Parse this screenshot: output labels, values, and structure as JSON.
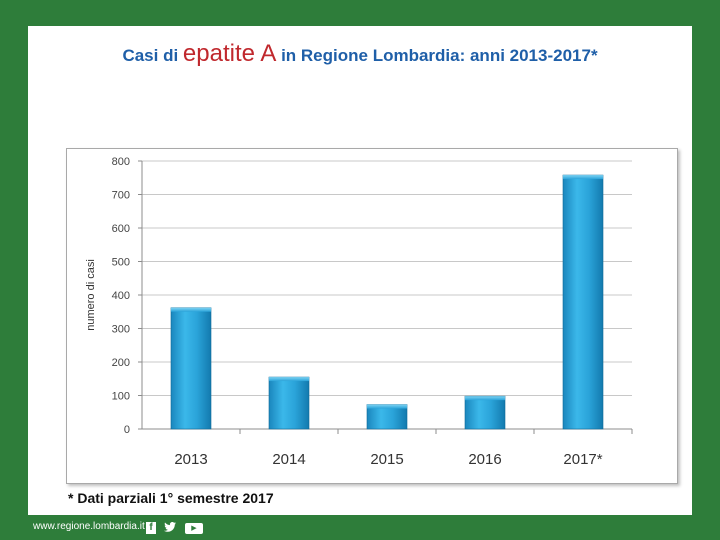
{
  "slide": {
    "title_parts": {
      "prefix": "Casi di",
      "highlight": "epatite A",
      "suffix": "in Regione Lombardia: anni 2013-2017*"
    },
    "footnote": "* Dati parziali 1° semestre 2017",
    "colors": {
      "background_green": "#2e7d3a",
      "title_blue": "#1f5fa8",
      "title_red": "#c0282d",
      "bar_main": "#2aa3d9",
      "bar_dark": "#1480b5"
    }
  },
  "footer": {
    "url": "www.regione.lombardia.it",
    "icons": [
      "facebook-icon",
      "twitter-icon",
      "youtube-icon"
    ]
  },
  "chart_data": {
    "type": "bar",
    "title": "",
    "categories": [
      "2013",
      "2014",
      "2015",
      "2016",
      "2017*"
    ],
    "values": [
      362,
      155,
      73,
      98,
      758
    ],
    "xlabel": "",
    "ylabel": "numero di casi",
    "ylim": [
      0,
      800
    ],
    "yticks": [
      0,
      100,
      200,
      300,
      400,
      500,
      600,
      700,
      800
    ],
    "grid": true,
    "legend": "none"
  }
}
